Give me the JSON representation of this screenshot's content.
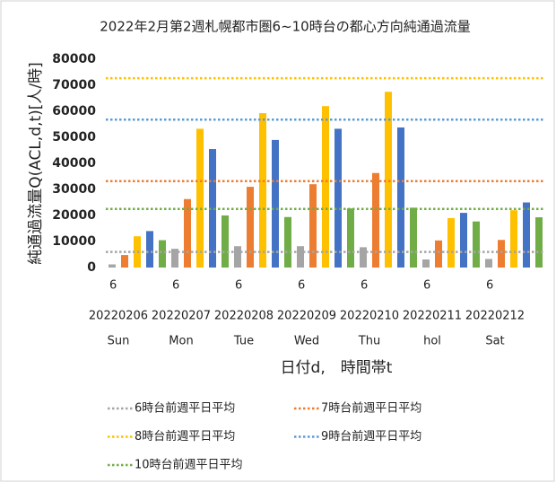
{
  "chart_data": {
    "type": "bar",
    "title": "2022年2月第2週札幌都市圏6~10時台の都心方向純通過流量",
    "ylabel": "純通過流量Q(ACL,d,t)[人/時]",
    "xlabel": "日付d,　時間帯t",
    "categories": [
      "6",
      null,
      null,
      null,
      null,
      "6",
      null,
      null,
      null,
      null,
      "6",
      null,
      null,
      null,
      null,
      "6",
      null,
      null,
      null,
      null,
      "6",
      null,
      null,
      null,
      null,
      "6",
      null,
      null,
      null,
      null,
      "6",
      null,
      null,
      null,
      null
    ],
    "dates": [
      "20220206",
      "20220207",
      "20220208",
      "20220209",
      "20220210",
      "20220211",
      "20220212"
    ],
    "weekdays": [
      "Sun",
      "Mon",
      "Tue",
      "Wed",
      "Thu",
      "hol",
      "Sat"
    ],
    "values": [
      1200,
      4800,
      12000,
      14000,
      10500,
      7200,
      26300,
      53300,
      45500,
      20000,
      8200,
      31000,
      59300,
      49000,
      19400,
      8200,
      32000,
      62000,
      53300,
      22700,
      7800,
      36300,
      67500,
      53800,
      23000,
      3100,
      10400,
      19000,
      21000,
      17700,
      3300,
      10600,
      22000,
      25000,
      19300
    ],
    "bar_colors": [
      "#a5a5a5",
      "#ed7d31",
      "#ffc000",
      "#4472c4",
      "#70ad47"
    ],
    "reference_lines": [
      {
        "name": "6時台前週平日平均",
        "color": "#a5a5a5",
        "value": 6000
      },
      {
        "name": "7時台前週平日平均",
        "color": "#ed7d31",
        "value": 33200
      },
      {
        "name": "8時台前週平日平均",
        "color": "#ffc000",
        "value": 72700
      },
      {
        "name": "9時台前週平日平均",
        "color": "#5b9bd5",
        "value": 56800
      },
      {
        "name": "10時台前週平日平均",
        "color": "#70ad47",
        "value": 22500
      }
    ],
    "ylim": [
      0,
      80000
    ],
    "yticks": [
      0,
      10000,
      20000,
      30000,
      40000,
      50000,
      60000,
      70000,
      80000
    ],
    "grid": false
  }
}
